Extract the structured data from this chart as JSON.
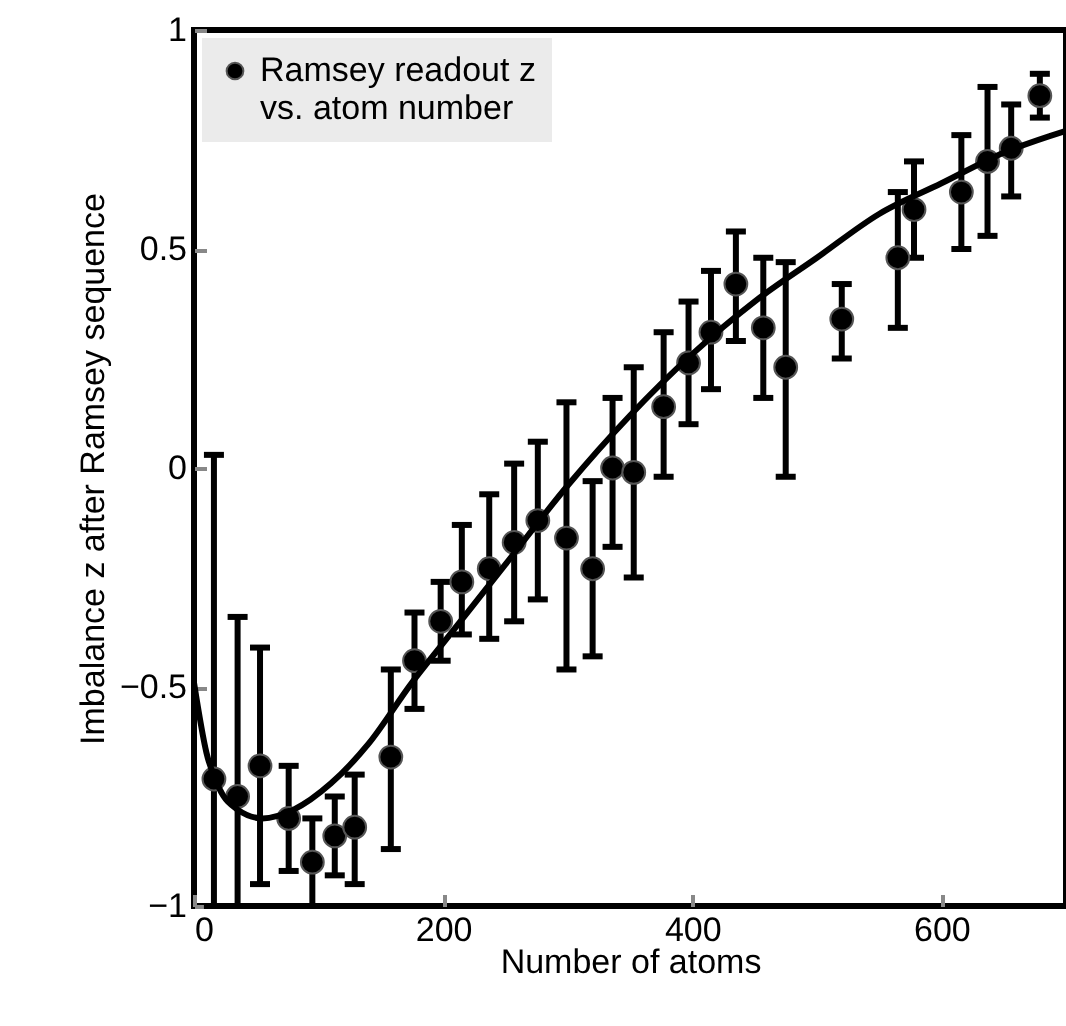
{
  "chart_data": {
    "type": "scatter",
    "xlabel": "Number of atoms",
    "ylabel": "Imbalance z after Ramsey sequence",
    "xlim": [
      0,
      700
    ],
    "ylim": [
      -1,
      1
    ],
    "xticks": [
      0,
      200,
      400,
      600
    ],
    "yticks": [
      -1,
      -0.5,
      0,
      0.5,
      1
    ],
    "grid": false,
    "legend": "top left",
    "marker": "circle",
    "series": [
      {
        "name": "Ramsey readout z vs. atom number",
        "type": "scatter",
        "color": "#000000",
        "x": [
          16,
          35,
          53,
          76,
          95,
          113,
          129,
          158,
          177,
          198,
          215,
          237,
          257,
          276,
          299,
          320,
          336,
          353,
          377,
          397,
          415,
          435,
          457,
          475,
          520,
          565,
          578,
          616,
          637,
          656,
          679
        ],
        "values": [
          -0.71,
          -0.75,
          -0.68,
          -0.8,
          -0.9,
          -0.84,
          -0.82,
          -0.66,
          -0.44,
          -0.35,
          -0.26,
          -0.23,
          -0.17,
          -0.12,
          -0.16,
          -0.23,
          0.0,
          -0.01,
          0.14,
          0.24,
          0.31,
          0.42,
          0.32,
          0.23,
          0.34,
          0.48,
          0.59,
          0.63,
          0.7,
          0.73,
          0.85
        ],
        "errors": [
          [
            -1,
            0.03
          ],
          [
            -1,
            -0.34
          ],
          [
            -0.95,
            -0.41
          ],
          [
            -0.92,
            -0.68
          ],
          [
            -1,
            -0.8
          ],
          [
            -0.93,
            -0.75
          ],
          [
            -0.95,
            -0.7
          ],
          [
            -0.87,
            -0.46
          ],
          [
            -0.55,
            -0.33
          ],
          [
            -0.44,
            -0.26
          ],
          [
            -0.38,
            -0.13
          ],
          [
            -0.39,
            -0.06
          ],
          [
            -0.35,
            0.01
          ],
          [
            -0.3,
            0.06
          ],
          [
            -0.46,
            0.15
          ],
          [
            -0.43,
            -0.03
          ],
          [
            -0.18,
            0.16
          ],
          [
            -0.25,
            0.23
          ],
          [
            -0.02,
            0.31
          ],
          [
            0.1,
            0.38
          ],
          [
            0.18,
            0.45
          ],
          [
            0.29,
            0.54
          ],
          [
            0.16,
            0.48
          ],
          [
            -0.02,
            0.47
          ],
          [
            0.25,
            0.42
          ],
          [
            0.32,
            0.63
          ],
          [
            0.48,
            0.7
          ],
          [
            0.5,
            0.76
          ],
          [
            0.53,
            0.87
          ],
          [
            0.62,
            0.83
          ],
          [
            0.8,
            0.9
          ]
        ]
      },
      {
        "type": "line",
        "color": "#000000",
        "line_style": "solid",
        "marker": "none",
        "x": [
          0,
          10,
          20,
          35,
          55,
          80,
          110,
          140,
          175,
          200,
          250,
          300,
          350,
          400,
          450,
          500,
          550,
          600,
          650,
          700
        ],
        "values": [
          -0.49,
          -0.65,
          -0.73,
          -0.78,
          -0.8,
          -0.78,
          -0.72,
          -0.63,
          -0.49,
          -0.4,
          -0.22,
          -0.04,
          0.12,
          0.26,
          0.38,
          0.48,
          0.58,
          0.65,
          0.72,
          0.77
        ]
      }
    ]
  }
}
